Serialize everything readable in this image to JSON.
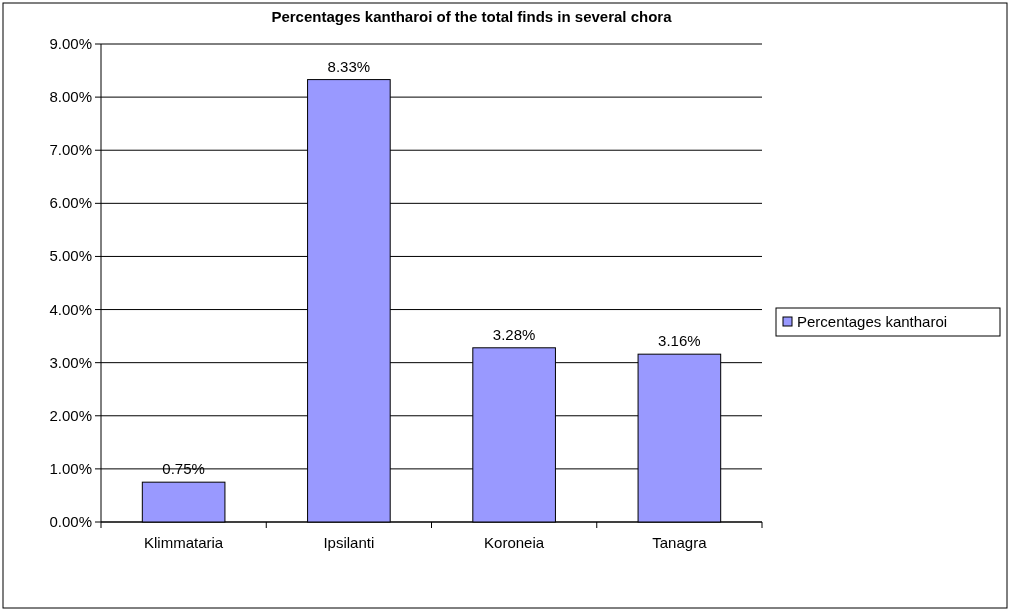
{
  "chart_data": {
    "type": "bar",
    "title": "Percentages kantharoi of the total finds in several chora",
    "categories": [
      "Klimmataria",
      "Ipsilanti",
      "Koroneia",
      "Tanagra"
    ],
    "series": [
      {
        "name": "Percentages kantharoi",
        "color": "#9999ff",
        "values": [
          0.75,
          8.33,
          3.28,
          3.16
        ],
        "value_labels": [
          "0.75%",
          "8.33%",
          "3.28%",
          "3.16%"
        ]
      }
    ],
    "ylim": [
      0,
      9
    ],
    "yticks": [
      {
        "value": 0,
        "label": "0.00%"
      },
      {
        "value": 1,
        "label": "1.00%"
      },
      {
        "value": 2,
        "label": "2.00%"
      },
      {
        "value": 3,
        "label": "3.00%"
      },
      {
        "value": 4,
        "label": "4.00%"
      },
      {
        "value": 5,
        "label": "5.00%"
      },
      {
        "value": 6,
        "label": "6.00%"
      },
      {
        "value": 7,
        "label": "7.00%"
      },
      {
        "value": 8,
        "label": "8.00%"
      },
      {
        "value": 9,
        "label": "9.00%"
      }
    ],
    "grid": "y",
    "legend": "right"
  }
}
